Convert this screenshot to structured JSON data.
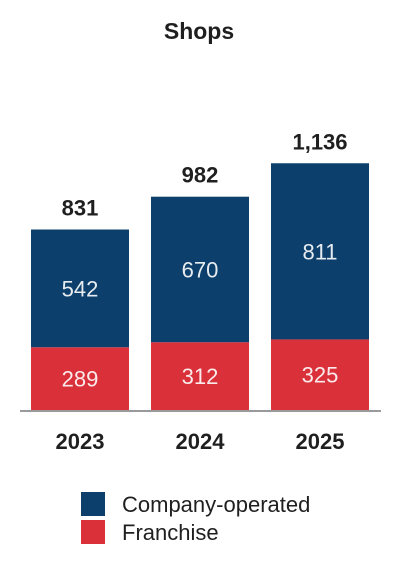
{
  "chart_data": {
    "type": "bar",
    "stacked": true,
    "title": "Shops",
    "categories": [
      "2023",
      "2024",
      "2025"
    ],
    "series": [
      {
        "name": "Franchise",
        "values": [
          289,
          312,
          325
        ],
        "color": "#d9303a"
      },
      {
        "name": "Company-operated",
        "values": [
          542,
          670,
          811
        ],
        "color": "#0c3f6b"
      }
    ],
    "totals": [
      "831",
      "982",
      "1,136"
    ],
    "legend": [
      {
        "name": "Company-operated",
        "color": "#0c3f6b"
      },
      {
        "name": "Franchise",
        "color": "#d9303a"
      }
    ],
    "legend_position": "bottom",
    "grid": false,
    "axis_color": "#9a9a9a"
  }
}
